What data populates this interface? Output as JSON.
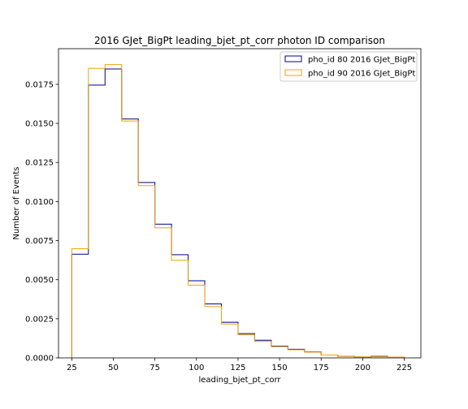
{
  "chart_data": {
    "type": "step",
    "title": "2016 GJet_BigPt leading_bjet_pt_corr photon ID comparison",
    "xlabel": "leading_bjet_pt_corr",
    "ylabel": "Number of Events",
    "xlim": [
      17,
      235
    ],
    "ylim": [
      0,
      0.01978
    ],
    "xticks": [
      25,
      50,
      75,
      100,
      125,
      150,
      175,
      200,
      225
    ],
    "xtick_labels": [
      "25",
      "50",
      "75",
      "100",
      "125",
      "150",
      "175",
      "200",
      "225"
    ],
    "yticks": [
      0,
      0.0025,
      0.005,
      0.0075,
      0.01,
      0.0125,
      0.015,
      0.0175
    ],
    "ytick_labels": [
      "0.0000",
      "0.0025",
      "0.0050",
      "0.0075",
      "0.0100",
      "0.0125",
      "0.0150",
      "0.0175"
    ],
    "bin_edges": [
      25,
      35,
      45,
      55,
      65,
      75,
      85,
      95,
      105,
      115,
      125,
      135,
      145,
      155,
      165,
      175,
      185,
      195,
      205,
      215,
      225
    ],
    "legend_position": "top-right",
    "series": [
      {
        "name": "pho_id 80 2016 GJet_BigPt",
        "color": "#00008b",
        "values": [
          0.00663,
          0.01745,
          0.01848,
          0.01528,
          0.01122,
          0.00855,
          0.0066,
          0.00493,
          0.00345,
          0.00228,
          0.00155,
          0.00113,
          0.00075,
          0.00055,
          0.00038,
          0.00018,
          0.0001,
          6e-05,
          0.0001,
          5e-05
        ]
      },
      {
        "name": "pho_id 90 2016 GJet_BigPt",
        "color": "#f0a30a",
        "values": [
          0.00698,
          0.01852,
          0.01876,
          0.01515,
          0.01102,
          0.00832,
          0.00624,
          0.00465,
          0.00328,
          0.00217,
          0.00148,
          0.00105,
          0.00072,
          0.00052,
          0.00037,
          0.00018,
          0.0001,
          6e-05,
          7e-05,
          5e-05
        ]
      }
    ]
  }
}
